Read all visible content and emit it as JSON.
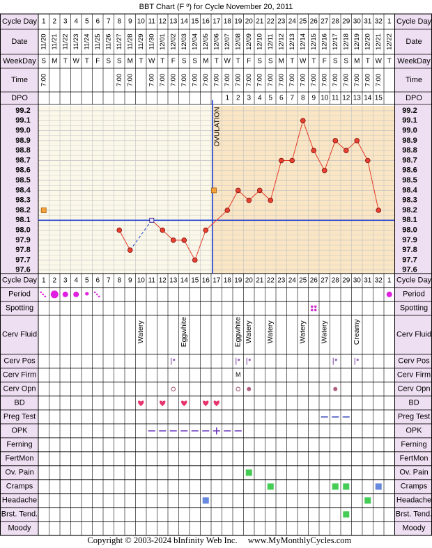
{
  "title": "BBT Chart (F º) for Cycle November 20, 2011",
  "footer": {
    "copyright": "Copyright © 2003-2024 bInfinity Web Inc.",
    "site": "www.MyMonthlyCycles.com"
  },
  "colors": {
    "pre_ovulation_bg": "#fbf8ea",
    "post_ovulation_bg": "#fae6c4",
    "grid": "#c2c2c2",
    "row_header_bg": "#efdff2",
    "temp_line": "#e43b28",
    "point_fill": "#e84030",
    "coverline": "#1f3fcf",
    "spotting": "#cc33cc",
    "period": "#e020e0",
    "heart": "#e8346c",
    "symptom": "#44cc55",
    "symptom_blue": "#6688dd"
  },
  "row_labels": {
    "cycle_day": "Cycle Day",
    "date": "Date",
    "weekday": "WeekDay",
    "time": "Time",
    "dpo": "DPO",
    "period": "Period",
    "spotting": "Spotting",
    "cerv_fluid": "Cerv Fluid",
    "cerv_pos": "Cerv Pos",
    "cerv_firm": "Cerv Firm",
    "cerv_opn": "Cerv Opn",
    "bd": "BD",
    "preg_test": "Preg Test",
    "opk": "OPK",
    "ferning": "Ferning",
    "fertmon": "FertMon",
    "ov_pain": "Ov. Pain",
    "cramps": "Cramps",
    "headache": "Headache",
    "brst_tend": "Brst. Tend.",
    "moody": "Moody"
  },
  "columns": {
    "cycle_days": [
      "1",
      "2",
      "3",
      "4",
      "5",
      "6",
      "7",
      "8",
      "9",
      "10",
      "11",
      "12",
      "13",
      "14",
      "15",
      "16",
      "17",
      "18",
      "19",
      "20",
      "21",
      "22",
      "23",
      "24",
      "25",
      "26",
      "27",
      "28",
      "29",
      "30",
      "31",
      "32",
      "1"
    ],
    "dates": [
      "11/20",
      "11/21",
      "11/22",
      "11/23",
      "11/24",
      "11/25",
      "11/26",
      "11/27",
      "11/28",
      "11/29",
      "11/30",
      "12/01",
      "12/02",
      "12/03",
      "12/04",
      "12/05",
      "12/06",
      "12/07",
      "12/08",
      "12/09",
      "12/10",
      "12/11",
      "12/12",
      "12/13",
      "12/14",
      "12/15",
      "12/16",
      "12/17",
      "12/18",
      "12/19",
      "12/20",
      "12/21",
      "12/22"
    ],
    "weekdays": [
      "S",
      "M",
      "T",
      "W",
      "T",
      "F",
      "S",
      "S",
      "M",
      "T",
      "W",
      "T",
      "F",
      "S",
      "S",
      "M",
      "T",
      "W",
      "T",
      "F",
      "S",
      "S",
      "M",
      "T",
      "W",
      "T",
      "F",
      "S",
      "S",
      "M",
      "T",
      "W",
      "T"
    ],
    "times": [
      "7:00",
      "",
      "",
      "",
      "",
      "",
      "",
      "7:00",
      "7:00",
      "",
      "7:00",
      "7:00",
      "7:00",
      "7:00",
      "7:00",
      "7:00",
      "7:00",
      "7:00",
      "7:00",
      "7:00",
      "7:00",
      "7:00",
      "7:00",
      "7:00",
      "7:00",
      "7:00",
      "7:00",
      "7:00",
      "7:00",
      "7:00",
      "7:00",
      "7:00",
      ""
    ],
    "dpo": [
      "",
      "",
      "",
      "",
      "",
      "",
      "",
      "",
      "",
      "",
      "",
      "",
      "",
      "",
      "",
      "",
      "",
      "1",
      "2",
      "3",
      "4",
      "5",
      "6",
      "7",
      "8",
      "9",
      "10",
      "11",
      "12",
      "13",
      "14",
      "15",
      ""
    ]
  },
  "chart_data": {
    "type": "line",
    "title": "BBT Chart (F º) for Cycle November 20, 2011",
    "xlabel": "Cycle Day",
    "ylabel": "",
    "ylim": [
      97.6,
      99.2
    ],
    "y_ticks": [
      "99.2",
      "99.1",
      "99.0",
      "98.9",
      "98.8",
      "98.7",
      "98.6",
      "98.5",
      "98.4",
      "98.3",
      "98.2",
      "98.1",
      "98.0",
      "97.9",
      "97.8",
      "97.7",
      "97.6"
    ],
    "x": [
      1,
      2,
      3,
      4,
      5,
      6,
      7,
      8,
      9,
      10,
      11,
      12,
      13,
      14,
      15,
      16,
      17,
      18,
      19,
      20,
      21,
      22,
      23,
      24,
      25,
      26,
      27,
      28,
      29,
      30,
      31,
      32,
      33
    ],
    "series": [
      {
        "values": [
          98.2,
          null,
          null,
          null,
          null,
          null,
          null,
          98.0,
          97.8,
          null,
          98.1,
          98.0,
          97.9,
          97.9,
          97.7,
          98.0,
          null,
          98.2,
          98.4,
          98.3,
          98.4,
          98.3,
          98.7,
          98.7,
          99.1,
          98.8,
          98.6,
          98.9,
          98.8,
          98.9,
          98.7,
          98.2,
          null
        ],
        "open_points": [
          1,
          11
        ],
        "dashed_segment_days": [
          9,
          11
        ]
      }
    ],
    "coverline": 98.1,
    "ovulation_day": 17,
    "ovulation_label": "OVULATION",
    "orange_marker": {
      "day": 17,
      "value": 98.4
    },
    "grid": true
  },
  "rows": {
    "period": [
      {
        "day": 1,
        "kind": "spot"
      },
      {
        "day": 2,
        "kind": "heavy"
      },
      {
        "day": 3,
        "kind": "medium"
      },
      {
        "day": 4,
        "kind": "medium"
      },
      {
        "day": 5,
        "kind": "light"
      },
      {
        "day": 6,
        "kind": "spot"
      },
      {
        "day": 33,
        "kind": "medium"
      }
    ],
    "spotting": [
      {
        "day": 26
      }
    ],
    "cerv_fluid": [
      {
        "day": 10,
        "text": "Watery"
      },
      {
        "day": 14,
        "text": "Eggwhite"
      },
      {
        "day": 19,
        "text": "Eggwhite"
      },
      {
        "day": 20,
        "text": "Watery"
      },
      {
        "day": 22,
        "text": "Watery"
      },
      {
        "day": 25,
        "text": "Watery"
      },
      {
        "day": 27,
        "text": "Watery"
      },
      {
        "day": 30,
        "text": "Creamy"
      }
    ],
    "cerv_pos": [
      {
        "day": 13
      },
      {
        "day": 19
      },
      {
        "day": 20
      },
      {
        "day": 28
      },
      {
        "day": 30
      }
    ],
    "cerv_firm": [
      {
        "day": 19,
        "text": "M"
      }
    ],
    "cerv_opn": [
      {
        "day": 13,
        "kind": "open"
      },
      {
        "day": 19,
        "kind": "open"
      },
      {
        "day": 20,
        "kind": "filled"
      },
      {
        "day": 28,
        "kind": "filled"
      }
    ],
    "bd": [
      10,
      12,
      14,
      16,
      17
    ],
    "preg_test": [
      27,
      28,
      29
    ],
    "opk": [
      {
        "day": 11,
        "kind": "neg"
      },
      {
        "day": 12,
        "kind": "neg"
      },
      {
        "day": 13,
        "kind": "neg"
      },
      {
        "day": 14,
        "kind": "neg"
      },
      {
        "day": 15,
        "kind": "neg"
      },
      {
        "day": 16,
        "kind": "neg"
      },
      {
        "day": 17,
        "kind": "pos"
      },
      {
        "day": 18,
        "kind": "neg"
      },
      {
        "day": 19,
        "kind": "neg"
      }
    ],
    "ov_pain": [
      {
        "day": 20,
        "color": "green"
      }
    ],
    "cramps": [
      {
        "day": 22,
        "color": "green"
      },
      {
        "day": 28,
        "color": "green"
      },
      {
        "day": 29,
        "color": "green"
      },
      {
        "day": 32,
        "color": "blue"
      }
    ],
    "headache": [
      {
        "day": 16,
        "color": "blue"
      },
      {
        "day": 31,
        "color": "green"
      }
    ],
    "brst_tend": [
      {
        "day": 29,
        "color": "green"
      }
    ]
  }
}
